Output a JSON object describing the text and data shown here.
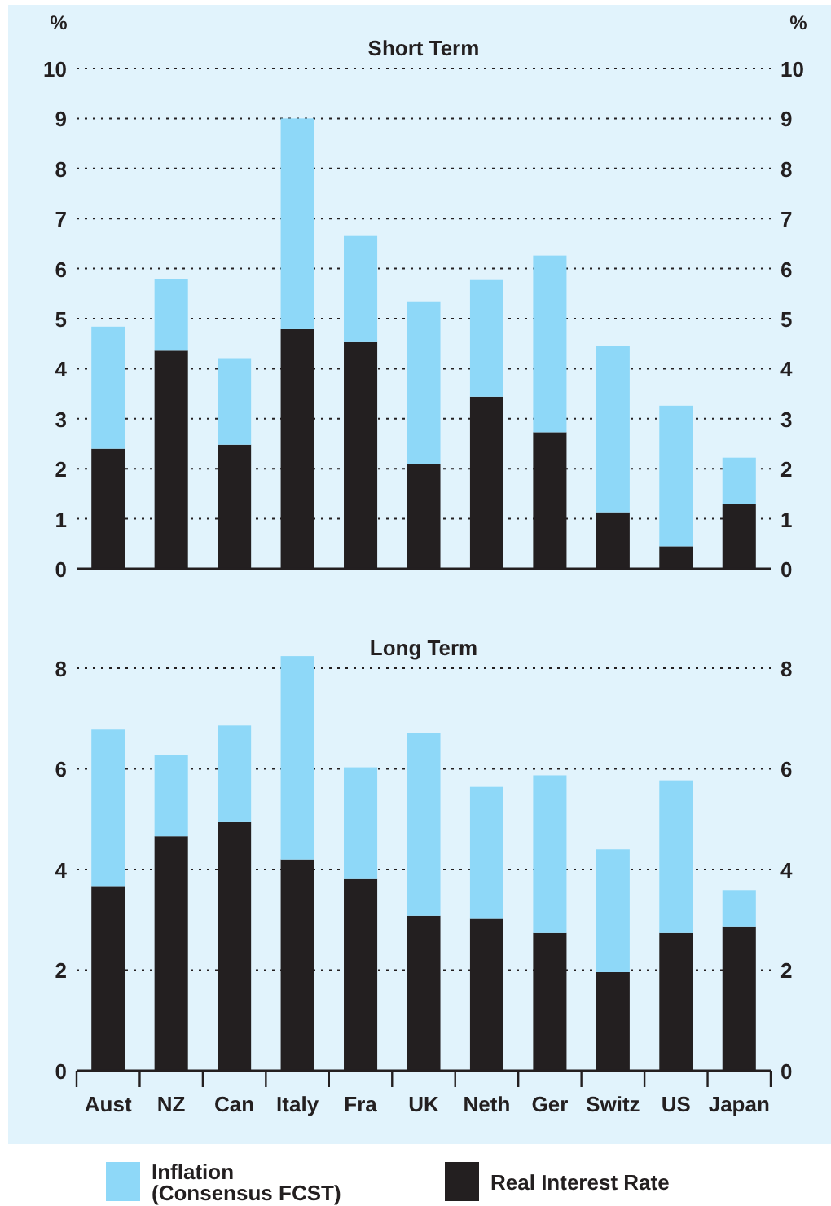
{
  "chart_data": [
    {
      "type": "bar",
      "title": "Short Term",
      "ylabel": "%",
      "y2label": "%",
      "stacked": true,
      "categories": [
        null,
        null,
        null,
        null,
        null,
        null,
        null,
        null,
        null,
        null,
        null
      ],
      "series": [
        {
          "color": "#231f20",
          "values": [
            2.4,
            4.36,
            2.48,
            4.79,
            4.53,
            2.1,
            3.44,
            2.73,
            1.13,
            0.45,
            1.29
          ]
        },
        {
          "color": "#8ed8f8",
          "values": [
            2.44,
            1.43,
            1.73,
            4.21,
            2.12,
            3.23,
            2.33,
            3.53,
            3.33,
            2.81,
            0.93
          ]
        }
      ],
      "ylim": [
        0,
        10
      ],
      "yticks": [
        0,
        1,
        2,
        3,
        4,
        5,
        6,
        7,
        8,
        9,
        10
      ],
      "y2lim": [
        0,
        10
      ],
      "y2ticks": [
        0,
        1,
        2,
        3,
        4,
        5,
        6,
        7,
        8,
        9,
        10
      ],
      "grid": "y",
      "tick_labels": "y"
    },
    {
      "type": "bar",
      "title": "Long Term",
      "stacked": true,
      "categories": [
        "Aust",
        "NZ",
        "Can",
        "Italy",
        "Fra",
        "UK",
        "Neth",
        "Ger",
        "Switz",
        "US",
        "Japan"
      ],
      "series": [
        {
          "name": "Real Interest Rate",
          "color": "#231f20",
          "values": [
            3.67,
            4.66,
            4.94,
            4.2,
            3.81,
            3.08,
            3.02,
            2.74,
            1.96,
            2.74,
            2.87
          ]
        },
        {
          "name": "Inflation\n(Consensus FCST)",
          "color": "#8ed8f8",
          "values": [
            3.11,
            1.61,
            1.92,
            4.04,
            2.22,
            3.63,
            2.62,
            3.13,
            2.44,
            3.03,
            0.72
          ]
        }
      ],
      "ylim": [
        0,
        8.3
      ],
      "yticks": [
        0,
        2,
        4,
        6,
        8
      ],
      "y2lim": [
        0,
        8.3
      ],
      "y2ticks": [
        0,
        2,
        4,
        6,
        8
      ],
      "grid": "y",
      "legend": "bottom"
    }
  ]
}
